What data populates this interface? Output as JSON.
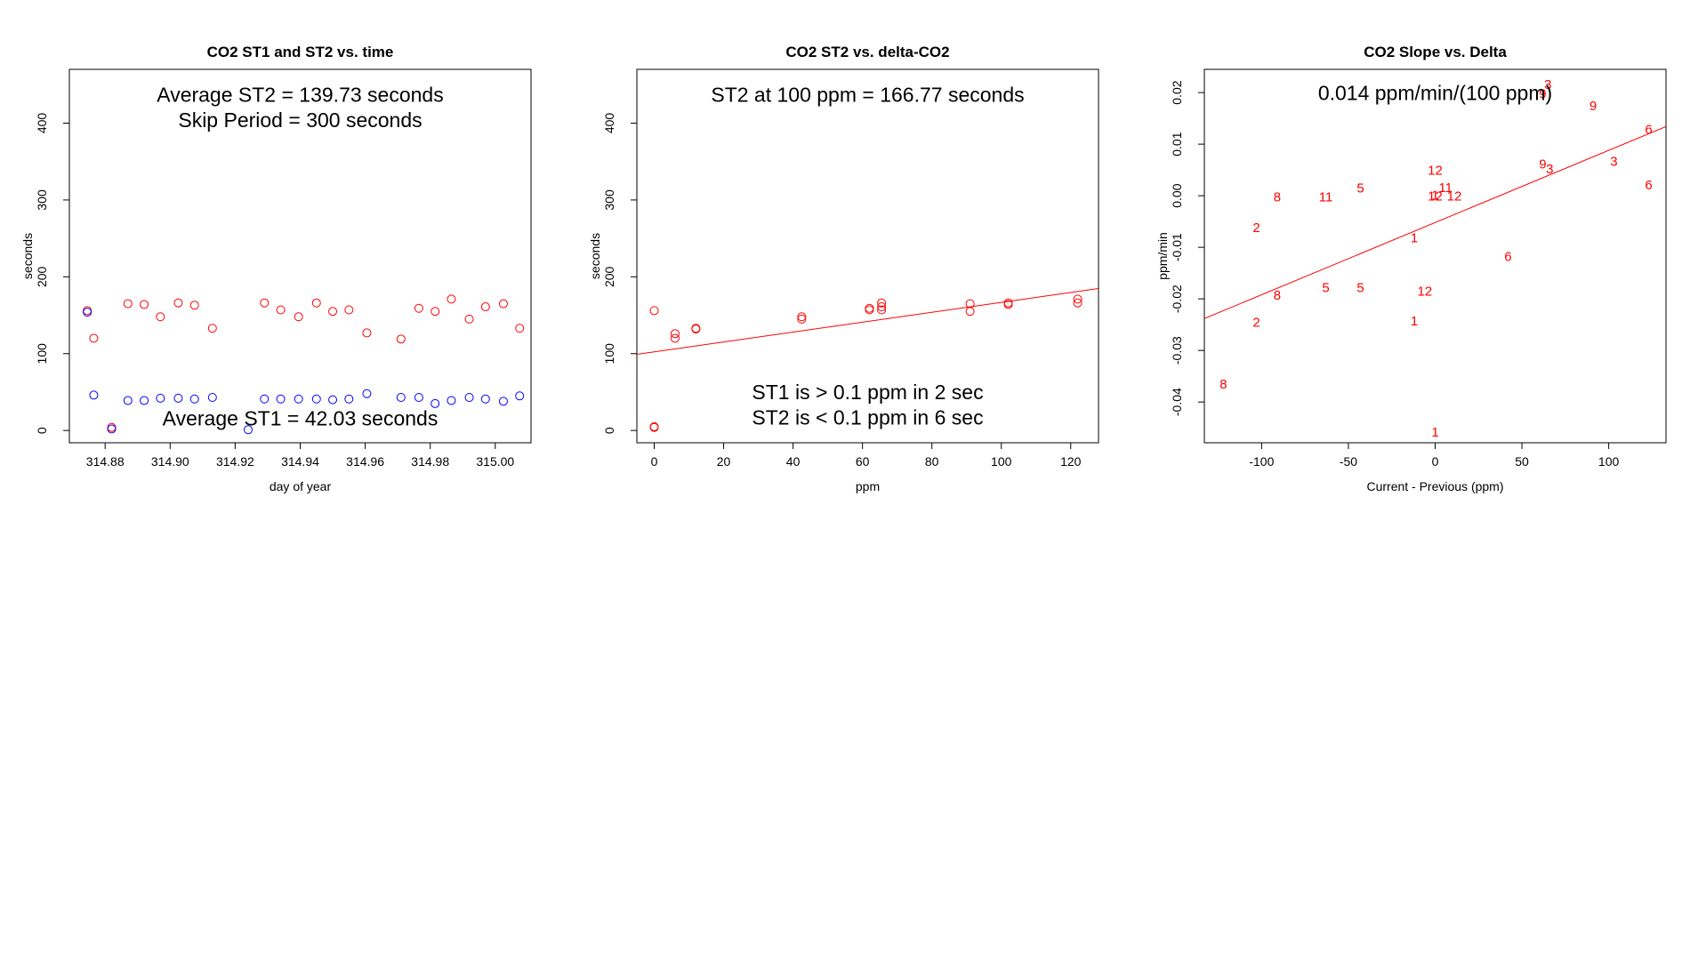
{
  "chart_data": [
    {
      "type": "scatter",
      "title": "CO2 ST1 and ST2 vs. time",
      "xlabel": "day of year",
      "ylabel": "seconds",
      "xlim": [
        314.869,
        315.011
      ],
      "ylim": [
        -16,
        470
      ],
      "xticks": [
        314.88,
        314.9,
        314.92,
        314.94,
        314.96,
        314.98,
        315.0
      ],
      "xtick_labels": [
        "314.88",
        "314.90",
        "314.92",
        "314.94",
        "314.96",
        "314.98",
        "315.00"
      ],
      "yticks": [
        0,
        100,
        200,
        300,
        400
      ],
      "ytick_labels": [
        "0",
        "100",
        "200",
        "300",
        "400"
      ],
      "annotations": [
        {
          "text": "Average ST2 =  139.73  seconds",
          "x": 314.94,
          "y": 437
        },
        {
          "text": "Skip Period =  300  seconds",
          "x": 314.94,
          "y": 404
        },
        {
          "text": "Average ST1 =  42.03  seconds",
          "x": 314.94,
          "y": 16
        }
      ],
      "series": [
        {
          "name": "ST2",
          "color": "#ff0000",
          "marker": "circle",
          "x": [
            314.8745,
            314.8765,
            314.882,
            314.887,
            314.892,
            314.897,
            314.9025,
            314.9075,
            314.913,
            314.929,
            314.934,
            314.9395,
            314.945,
            314.95,
            314.955,
            314.9605,
            314.971,
            314.9765,
            314.9815,
            314.9865,
            314.992,
            314.997,
            315.0025,
            315.0075
          ],
          "y": [
            156,
            120,
            4,
            165,
            164,
            148,
            166,
            163,
            133,
            166,
            157,
            148,
            166,
            155,
            157,
            127,
            119,
            159,
            155,
            171,
            145,
            161,
            165,
            133
          ]
        },
        {
          "name": "ST1",
          "color": "#0000ff",
          "marker": "circle",
          "x": [
            314.8745,
            314.8765,
            314.882,
            314.887,
            314.892,
            314.897,
            314.9025,
            314.9075,
            314.913,
            314.924,
            314.929,
            314.934,
            314.9395,
            314.945,
            314.95,
            314.955,
            314.9605,
            314.971,
            314.9765,
            314.9815,
            314.9865,
            314.992,
            314.997,
            315.0025,
            315.0075
          ],
          "y": [
            154,
            46,
            2,
            39,
            39,
            42,
            42,
            41,
            43,
            1,
            41,
            41,
            41,
            41,
            40,
            41,
            48,
            43,
            43,
            35,
            39,
            43,
            41,
            38,
            45
          ]
        }
      ]
    },
    {
      "type": "scatter",
      "title": "CO2 ST2 vs. delta-CO2",
      "xlabel": "ppm",
      "ylabel": "seconds",
      "xlim": [
        -5,
        128
      ],
      "ylim": [
        -16,
        470
      ],
      "xticks": [
        0,
        20,
        40,
        60,
        80,
        100,
        120
      ],
      "xtick_labels": [
        "0",
        "20",
        "40",
        "60",
        "80",
        "100",
        "120"
      ],
      "yticks": [
        0,
        100,
        200,
        300,
        400
      ],
      "ytick_labels": [
        "0",
        "100",
        "200",
        "300",
        "400"
      ],
      "annotations": [
        {
          "text": "ST2 at 100 ppm =  166.77  seconds",
          "x": 61.5,
          "y": 437
        },
        {
          "text": "ST1 is > 0.1 ppm in 2 sec",
          "x": 61.5,
          "y": 50
        },
        {
          "text": "ST2 is < 0.1 ppm in 6 sec",
          "x": 61.5,
          "y": 17
        }
      ],
      "fit_line": {
        "color": "#ff0000",
        "intercept": 102.3,
        "slope": 0.6447
      },
      "series": [
        {
          "name": "ST2",
          "color": "#ff0000",
          "marker": "circle",
          "x": [
            0,
            0,
            0,
            6,
            6,
            12,
            12,
            42.5,
            42.5,
            62,
            62,
            65.5,
            65.5,
            65.5,
            91,
            91,
            102,
            102,
            122,
            122
          ],
          "y": [
            156,
            5,
            4,
            126,
            120,
            133,
            132,
            148,
            145,
            159,
            157,
            166,
            161,
            157,
            165,
            155,
            166,
            164,
            171,
            166
          ]
        }
      ]
    },
    {
      "type": "scatter",
      "title": "CO2 Slope vs. Delta",
      "xlabel": "Current - Previous (ppm)",
      "ylabel": "ppm/min",
      "xlim": [
        -133,
        133
      ],
      "ylim": [
        -0.0479,
        0.0245
      ],
      "xticks": [
        -100,
        -50,
        0,
        50,
        100
      ],
      "xtick_labels": [
        "-100",
        "-50",
        "0",
        "50",
        "100"
      ],
      "yticks": [
        -0.04,
        -0.03,
        -0.02,
        -0.01,
        0.0,
        0.01,
        0.02
      ],
      "ytick_labels": [
        "-0.04",
        "-0.03",
        "-0.02",
        "-0.01",
        "0.00",
        "0.01",
        "0.02"
      ],
      "annotations": [
        {
          "text": "0.014  ppm/min/(100 ppm)",
          "x": 0,
          "y": 0.0199
        }
      ],
      "fit_line": {
        "color": "#ff0000",
        "intercept": -0.0052,
        "slope": 0.00014
      },
      "series": [
        {
          "name": "",
          "color": "#ff0000",
          "marker": "label",
          "x": [
            -122,
            -103,
            -103,
            -91,
            -91,
            -63,
            -63,
            -43,
            -43,
            -12,
            -12,
            0,
            0,
            0,
            -6,
            6,
            11,
            0,
            42,
            62,
            62,
            65,
            66,
            91,
            103,
            123,
            123
          ],
          "y": [
            -0.0365,
            -0.0062,
            -0.0245,
            -0.0002,
            -0.0193,
            -0.0002,
            -0.0178,
            0.0015,
            -0.0178,
            -0.0082,
            -0.0243,
            -0.0458,
            0.0049,
            -0.0001,
            -0.0185,
            0.0016,
            -0.0001,
            0.0001,
            -0.0118,
            0.0061,
            0.0198,
            0.0216,
            0.0052,
            0.0174,
            0.0067,
            0.0129,
            0.0021
          ],
          "labels": [
            "8",
            "2",
            "2",
            "8",
            "8",
            "11",
            "5",
            "5",
            "5",
            "1",
            "1",
            "1",
            "12",
            "12",
            "12",
            "11",
            "12",
            "1",
            "6",
            "9",
            "9",
            "3",
            "3",
            "9",
            "3",
            "6",
            "6"
          ]
        }
      ]
    }
  ]
}
